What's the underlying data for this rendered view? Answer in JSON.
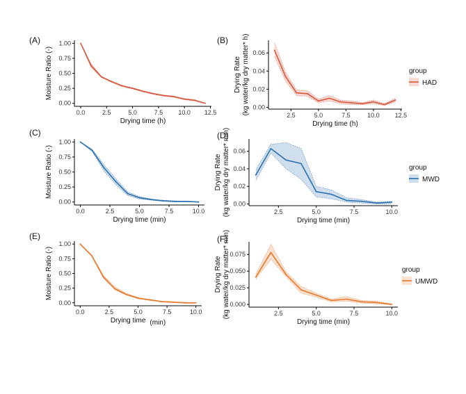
{
  "chart_data": [
    {
      "id": "A",
      "panel_label": "(A)",
      "type": "line",
      "color": "#d9553c",
      "xlabel": "Drying time (h)",
      "ylabel": "Moisture Ratio (-)",
      "xlim": [
        -0.6,
        12.6
      ],
      "ylim": [
        -0.05,
        1.05
      ],
      "xticks": [
        0,
        2.5,
        5,
        7.5,
        10,
        12.5
      ],
      "xtick_labels": [
        "0.0",
        "2.5",
        "5.0",
        "7.5",
        "10.0",
        "12.5"
      ],
      "yticks": [
        0,
        0.25,
        0.5,
        0.75,
        1.0
      ],
      "ytick_labels": [
        "0.00",
        "0.25",
        "0.50",
        "0.75",
        "1.00"
      ],
      "x": [
        0,
        1,
        2,
        3,
        4,
        5,
        6,
        7,
        8,
        9,
        10,
        11,
        12
      ],
      "y": [
        1.0,
        0.63,
        0.44,
        0.36,
        0.29,
        0.25,
        0.2,
        0.16,
        0.13,
        0.11,
        0.07,
        0.05,
        0.0
      ],
      "lower": [
        1.0,
        0.6,
        0.43,
        0.35,
        0.28,
        0.24,
        0.19,
        0.15,
        0.12,
        0.1,
        0.06,
        0.04,
        0.0
      ],
      "upper": [
        1.0,
        0.66,
        0.45,
        0.37,
        0.3,
        0.26,
        0.21,
        0.17,
        0.14,
        0.12,
        0.08,
        0.06,
        0.0
      ]
    },
    {
      "id": "B",
      "panel_label": "(B)",
      "type": "line",
      "color": "#d9553c",
      "xlabel": "Drying time  (h)",
      "ylabel": "Drying Rate",
      "ylabel2": "(kg water/kg dry matter* h)",
      "xlim": [
        0.45,
        12.6
      ],
      "ylim": [
        -0.002,
        0.074
      ],
      "xticks": [
        2.5,
        5,
        7.5,
        10,
        12.5
      ],
      "xtick_labels": [
        "2.5",
        "5.0",
        "7.5",
        "10.0",
        "12.5"
      ],
      "yticks": [
        0,
        0.02,
        0.04,
        0.06
      ],
      "ytick_labels": [
        "0.00",
        "0.02",
        "0.04",
        "0.06"
      ],
      "x": [
        1,
        2,
        3,
        4,
        5,
        6,
        7,
        8,
        9,
        10,
        11,
        12
      ],
      "y": [
        0.063,
        0.034,
        0.016,
        0.015,
        0.007,
        0.01,
        0.006,
        0.005,
        0.004,
        0.006,
        0.003,
        0.008
      ],
      "lower": [
        0.056,
        0.029,
        0.013,
        0.012,
        0.005,
        0.007,
        0.004,
        0.003,
        0.003,
        0.004,
        0.002,
        0.006
      ],
      "upper": [
        0.071,
        0.039,
        0.019,
        0.018,
        0.009,
        0.013,
        0.008,
        0.007,
        0.005,
        0.008,
        0.004,
        0.01
      ],
      "legend": {
        "title": "group",
        "label": "HAD"
      }
    },
    {
      "id": "C",
      "panel_label": "(C)",
      "type": "line",
      "color": "#2b6fae",
      "xlabel": "Drying time (min)",
      "ylabel": "Moisture Ratio (-)",
      "xlim": [
        -0.5,
        10.5
      ],
      "ylim": [
        -0.05,
        1.05
      ],
      "xticks": [
        0,
        2.5,
        5,
        7.5,
        10
      ],
      "xtick_labels": [
        "0.0",
        "2.5",
        "5.0",
        "7.5",
        "10.0"
      ],
      "yticks": [
        0,
        0.25,
        0.5,
        0.75,
        1.0
      ],
      "ytick_labels": [
        "0.00",
        "0.25",
        "0.50",
        "0.75",
        "1.00"
      ],
      "x": [
        0,
        1,
        2,
        3,
        4,
        5,
        6,
        7,
        8,
        9,
        10
      ],
      "y": [
        1.0,
        0.86,
        0.57,
        0.34,
        0.14,
        0.07,
        0.04,
        0.02,
        0.01,
        0.01,
        0.0
      ],
      "lower": [
        1.0,
        0.84,
        0.52,
        0.29,
        0.11,
        0.05,
        0.03,
        0.01,
        0.0,
        0.0,
        0.0
      ],
      "upper": [
        1.0,
        0.88,
        0.62,
        0.39,
        0.17,
        0.09,
        0.05,
        0.03,
        0.02,
        0.01,
        0.0
      ]
    },
    {
      "id": "D",
      "panel_label": "(D)",
      "type": "line",
      "color": "#2b6fae",
      "xlabel": "Drying time (min)",
      "ylabel": "Drying Rate",
      "ylabel2": "(kg water/kg dry matter* min)",
      "xlim": [
        0.55,
        10.4
      ],
      "ylim": [
        -0.002,
        0.074
      ],
      "xticks": [
        2.5,
        5,
        7.5,
        10
      ],
      "xtick_labels": [
        "2.5",
        "5.0",
        "7.5",
        "10.0"
      ],
      "yticks": [
        0,
        0.02,
        0.04,
        0.06
      ],
      "ytick_labels": [
        "0.00",
        "0.02",
        "0.04",
        "0.06"
      ],
      "x": [
        1,
        2,
        3,
        4,
        5,
        6,
        7,
        8,
        9,
        10
      ],
      "y": [
        0.033,
        0.063,
        0.05,
        0.046,
        0.014,
        0.011,
        0.004,
        0.003,
        0.001,
        0.002
      ],
      "lower": [
        0.027,
        0.058,
        0.04,
        0.028,
        0.008,
        0.006,
        0.002,
        0.001,
        0.0,
        0.0
      ],
      "upper": [
        0.039,
        0.068,
        0.07,
        0.063,
        0.02,
        0.016,
        0.007,
        0.005,
        0.002,
        0.003
      ],
      "legend": {
        "title": "group",
        "label": "MWD"
      }
    },
    {
      "id": "E",
      "panel_label": "(E)",
      "type": "line",
      "color": "#e8772a",
      "xlabel": "Drying time",
      "xlabel_unit": "(min)",
      "ylabel": "Moisture Ratio (-)",
      "xlim": [
        -0.5,
        10.5
      ],
      "ylim": [
        -0.05,
        1.05
      ],
      "xticks": [
        0,
        2.5,
        5,
        7.5,
        10
      ],
      "xtick_labels": [
        "0.0",
        "2.5",
        "5.0",
        "7.5",
        "10.0"
      ],
      "yticks": [
        0,
        0.25,
        0.5,
        0.75,
        1.0
      ],
      "ytick_labels": [
        "0.00",
        "0.25",
        "0.50",
        "0.75",
        "1.00"
      ],
      "x": [
        0,
        1,
        2,
        3,
        4,
        5,
        6,
        7,
        8,
        9,
        10
      ],
      "y": [
        1.0,
        0.8,
        0.44,
        0.24,
        0.14,
        0.08,
        0.05,
        0.02,
        0.01,
        0.0,
        0.0
      ],
      "lower": [
        1.0,
        0.79,
        0.42,
        0.22,
        0.13,
        0.07,
        0.04,
        0.02,
        0.01,
        0.0,
        0.0
      ],
      "upper": [
        1.0,
        0.81,
        0.47,
        0.27,
        0.16,
        0.09,
        0.06,
        0.03,
        0.02,
        0.01,
        0.0
      ]
    },
    {
      "id": "F",
      "panel_label": "(F)",
      "type": "line",
      "color": "#e8772a",
      "xlabel": "Drying time (min)",
      "ylabel": "Drying Rate",
      "ylabel2": "(kg water/kg dry matter* min)",
      "xlim": [
        0.55,
        10.4
      ],
      "ylim": [
        -0.004,
        0.094
      ],
      "xticks": [
        2.5,
        5,
        7.5,
        10
      ],
      "xtick_labels": [
        "2.5",
        "5.0",
        "7.5",
        "10.0"
      ],
      "yticks": [
        0,
        0.025,
        0.05,
        0.075
      ],
      "ytick_labels": [
        "0.000",
        "0.025",
        "0.050",
        "0.075"
      ],
      "x": [
        1,
        2,
        3,
        4,
        5,
        6,
        7,
        8,
        9,
        10
      ],
      "y": [
        0.041,
        0.078,
        0.045,
        0.022,
        0.014,
        0.006,
        0.008,
        0.004,
        0.003,
        0.0
      ],
      "lower": [
        0.038,
        0.068,
        0.042,
        0.017,
        0.011,
        0.004,
        0.005,
        0.002,
        0.001,
        0.0
      ],
      "upper": [
        0.045,
        0.09,
        0.049,
        0.027,
        0.017,
        0.008,
        0.012,
        0.006,
        0.005,
        0.001
      ],
      "legend": {
        "title": "group",
        "label": "UMWD"
      }
    }
  ]
}
